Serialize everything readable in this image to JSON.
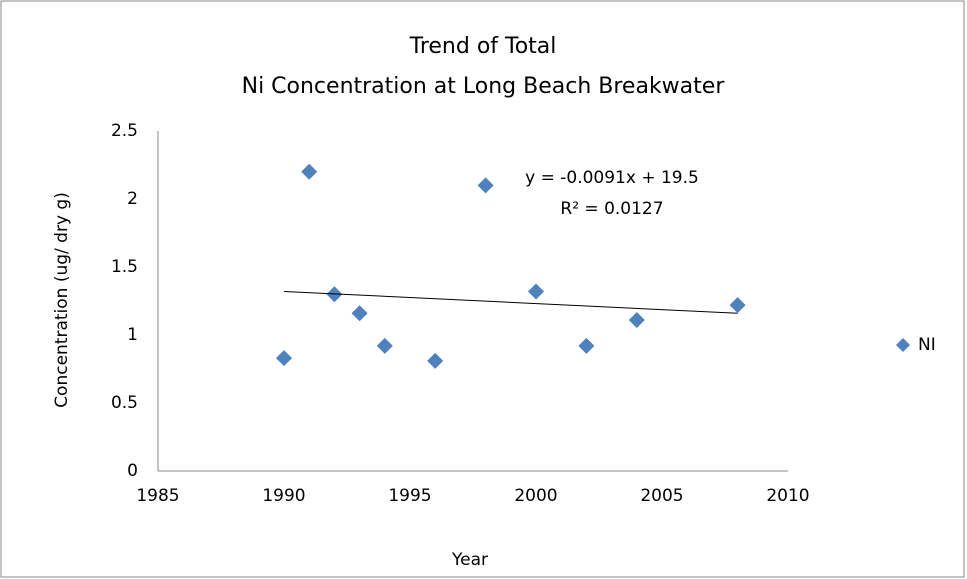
{
  "chart_data": {
    "type": "scatter",
    "title": [
      "Trend of Total",
      "Ni Concentration at Long Beach Breakwater"
    ],
    "x_label": "Year",
    "y_label": "Concentration (ug/ dry g)",
    "x": [
      1990,
      1991,
      1992,
      1993,
      1994,
      1996,
      1998,
      2000,
      2002,
      2004,
      2008
    ],
    "series": [
      {
        "name": "NI",
        "color": "#4f81bd",
        "values": [
          0.83,
          2.2,
          1.3,
          1.16,
          0.92,
          0.81,
          2.1,
          1.32,
          0.92,
          1.11,
          1.22
        ]
      }
    ],
    "trendline": {
      "x": [
        1990,
        2008
      ],
      "values": [
        1.32,
        1.16
      ],
      "color": "#000000"
    },
    "annotations": [
      "y = -0.0091x + 19.5",
      "R² = 0.0127"
    ],
    "xlim": [
      1985,
      2010
    ],
    "xticks": [
      1985,
      1990,
      1995,
      2000,
      2005,
      2010
    ],
    "ylim": [
      0,
      2.5
    ],
    "yticks": [
      0,
      0.5,
      1,
      1.5,
      2,
      2.5
    ],
    "grid": false,
    "legend": "right"
  }
}
